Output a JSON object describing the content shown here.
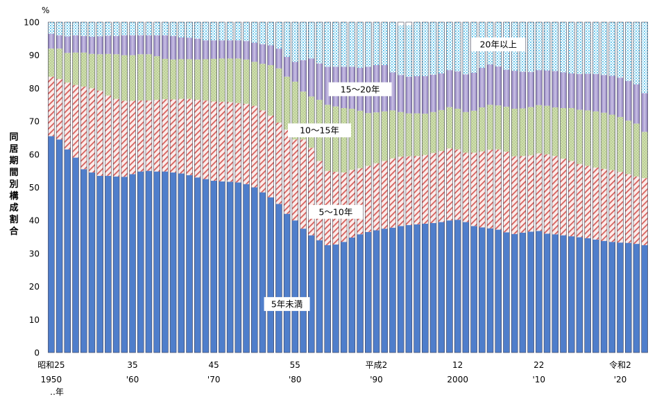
{
  "chart_data": {
    "type": "bar",
    "stacked": true,
    "unit_label": "%",
    "ylabel": "同居期間別構成割合",
    "ylim": [
      0,
      100
    ],
    "yticks": [
      0,
      10,
      20,
      30,
      40,
      50,
      60,
      70,
      80,
      90,
      100
    ],
    "grid": false,
    "year_start": 1950,
    "year_end": 2020,
    "x_note": "‥年",
    "x_labels": [
      {
        "year": 1950,
        "line1": "昭和25",
        "line2": "1950"
      },
      {
        "year": 1960,
        "line1": "35",
        "line2": "'60"
      },
      {
        "year": 1970,
        "line1": "45",
        "line2": "'70"
      },
      {
        "year": 1980,
        "line1": "55",
        "line2": "'80"
      },
      {
        "year": 1990,
        "line1": "平成2",
        "line2": "'90"
      },
      {
        "year": 2000,
        "line1": "12",
        "line2": "2000"
      },
      {
        "year": 2010,
        "line1": "22",
        "line2": "'10"
      },
      {
        "year": 2020,
        "line1": "令和2",
        "line2": "'20"
      }
    ],
    "series": [
      {
        "name": "5年未満",
        "color": "#4f7ecb",
        "pattern": "solid",
        "values": [
          65.5,
          64.5,
          61.5,
          59.0,
          55.5,
          54.5,
          53.5,
          53.5,
          53.3,
          53.2,
          54.0,
          54.8,
          55.0,
          54.8,
          54.8,
          54.5,
          54.2,
          53.7,
          53.0,
          52.5,
          52.0,
          51.8,
          51.7,
          51.5,
          51.0,
          50.0,
          48.5,
          47.0,
          45.0,
          42.0,
          40.0,
          37.5,
          35.5,
          34.0,
          32.5,
          32.7,
          33.5,
          34.8,
          35.8,
          36.5,
          37.0,
          37.5,
          37.8,
          38.3,
          38.6,
          38.8,
          39.0,
          39.2,
          39.5,
          40.0,
          40.2,
          39.5,
          38.3,
          37.9,
          37.6,
          37.2,
          36.4,
          35.9,
          36.3,
          36.6,
          36.8,
          36.0,
          35.8,
          35.5,
          35.2,
          34.9,
          34.6,
          34.2,
          33.8,
          33.5,
          33.3,
          33.2,
          32.9,
          32.5
        ]
      },
      {
        "name": "5～10年",
        "color": "#d9534f",
        "pattern": "hatch",
        "values": [
          18.0,
          18.3,
          20.2,
          22.0,
          25.0,
          25.5,
          25.8,
          24.3,
          23.5,
          23.0,
          22.2,
          21.5,
          21.3,
          21.7,
          21.9,
          22.1,
          22.6,
          23.1,
          23.5,
          23.8,
          24.0,
          24.1,
          24.1,
          24.0,
          24.3,
          24.7,
          24.8,
          24.7,
          24.6,
          25.5,
          24.5,
          27.0,
          26.5,
          24.0,
          22.5,
          22.0,
          21.0,
          20.5,
          20.0,
          20.0,
          20.3,
          20.5,
          21.0,
          21.0,
          20.8,
          20.7,
          20.8,
          21.2,
          21.5,
          21.8,
          21.3,
          21.0,
          22.2,
          23.0,
          23.8,
          24.3,
          24.4,
          23.5,
          23.2,
          23.1,
          23.5,
          24.0,
          23.7,
          23.2,
          22.8,
          22.2,
          21.9,
          21.8,
          21.8,
          21.7,
          21.4,
          20.8,
          20.4,
          20.3
        ]
      },
      {
        "name": "10～15年",
        "color": "#b8cc8f",
        "pattern": "dots",
        "values": [
          8.5,
          9.2,
          9.0,
          9.8,
          10.3,
          10.4,
          11.0,
          12.6,
          13.5,
          13.8,
          13.8,
          14.0,
          14.0,
          13.2,
          12.2,
          12.1,
          12.0,
          12.0,
          12.2,
          12.5,
          12.9,
          13.1,
          13.2,
          13.5,
          13.4,
          13.3,
          14.1,
          15.3,
          16.4,
          16.0,
          17.5,
          14.5,
          15.5,
          18.5,
          20.0,
          19.8,
          19.5,
          18.5,
          17.4,
          16.0,
          15.4,
          15.0,
          14.5,
          13.5,
          13.0,
          12.9,
          12.5,
          12.4,
          12.4,
          12.5,
          12.3,
          12.3,
          12.7,
          13.3,
          13.6,
          13.3,
          13.6,
          14.4,
          14.4,
          14.6,
          14.6,
          14.7,
          14.7,
          15.3,
          16.0,
          16.4,
          16.8,
          17.0,
          17.0,
          16.8,
          16.6,
          16.2,
          16.0,
          14.0
        ]
      },
      {
        "name": "15～20年",
        "color": "#9a8cc4",
        "pattern": "tinted",
        "values": [
          4.5,
          4.0,
          5.0,
          5.2,
          5.0,
          5.2,
          5.4,
          5.5,
          5.5,
          6.0,
          6.0,
          5.7,
          5.7,
          6.3,
          7.1,
          7.1,
          6.6,
          6.5,
          6.3,
          5.7,
          5.6,
          5.5,
          5.5,
          5.5,
          5.6,
          5.8,
          5.9,
          6.0,
          6.0,
          6.0,
          6.0,
          9.5,
          11.5,
          11.0,
          11.5,
          12.0,
          12.5,
          12.7,
          13.0,
          14.0,
          14.3,
          14.0,
          11.5,
          11.2,
          11.1,
          11.3,
          11.4,
          11.3,
          11.1,
          11.2,
          11.3,
          11.4,
          11.5,
          12.0,
          12.2,
          11.8,
          11.2,
          11.5,
          11.1,
          10.6,
          10.6,
          10.7,
          11.0,
          10.8,
          10.5,
          10.8,
          11.1,
          11.3,
          11.4,
          11.8,
          11.9,
          12.0,
          11.9,
          11.7
        ]
      },
      {
        "name": "20年以上",
        "color": "#7fd0ee",
        "pattern": "cross",
        "values": [
          3.5,
          4.0,
          4.3,
          4.0,
          4.2,
          4.4,
          4.3,
          4.1,
          4.2,
          4.0,
          4.0,
          4.0,
          4.0,
          4.0,
          4.0,
          4.2,
          4.6,
          4.7,
          5.0,
          5.5,
          5.5,
          5.5,
          5.5,
          5.5,
          5.7,
          6.2,
          6.7,
          7.0,
          8.0,
          10.5,
          12.0,
          11.5,
          11.0,
          12.5,
          13.5,
          13.5,
          13.5,
          13.5,
          13.8,
          13.5,
          13.0,
          13.0,
          15.2,
          15.0,
          15.5,
          16.3,
          16.3,
          15.9,
          15.5,
          14.5,
          14.9,
          15.8,
          15.3,
          13.8,
          12.8,
          13.4,
          14.4,
          14.7,
          15.0,
          15.1,
          14.5,
          14.6,
          14.8,
          15.2,
          15.5,
          15.7,
          15.6,
          15.7,
          16.0,
          16.2,
          16.8,
          17.8,
          18.8,
          21.5
        ]
      }
    ],
    "annotations": [
      {
        "text": "20年以上",
        "series": "20年以上"
      },
      {
        "text": "15～20年",
        "series": "15～20年"
      },
      {
        "text": "10～15年",
        "series": "10～15年"
      },
      {
        "text": "5～10年",
        "series": "5～10年"
      },
      {
        "text": "5年未満",
        "series": "5年未満"
      }
    ]
  }
}
